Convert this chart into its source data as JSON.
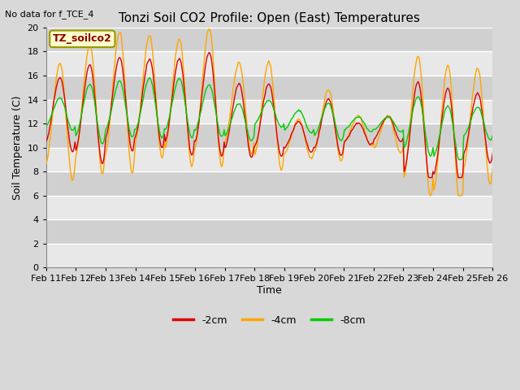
{
  "title": "Tonzi Soil CO2 Profile: Open (East) Temperatures",
  "subtitle": "No data for f_TCE_4",
  "ylabel": "Soil Temperature (C)",
  "xlabel": "Time",
  "legend_label": "TZ_soilco2",
  "series_labels": [
    "-2cm",
    "-4cm",
    "-8cm"
  ],
  "series_colors": [
    "#dd0000",
    "#ffa500",
    "#00cc00"
  ],
  "ylim": [
    0,
    20
  ],
  "yticks": [
    0,
    2,
    4,
    6,
    8,
    10,
    12,
    14,
    16,
    18,
    20
  ],
  "xtick_labels": [
    "Feb 11",
    "Feb 12",
    "Feb 13",
    "Feb 14",
    "Feb 15",
    "Feb 16",
    "Feb 17",
    "Feb 18",
    "Feb 19",
    "Feb 20",
    "Feb 21",
    "Feb 22",
    "Feb 23",
    "Feb 24",
    "Feb 25",
    "Feb 26"
  ],
  "bg_color": "#d8d8d8",
  "plot_bg_color": "#e0e0e0",
  "line_width": 1.0,
  "grid_color": "#ffffff",
  "n_points": 480,
  "band_colors": [
    "#e8e8e8",
    "#d4d4d4"
  ]
}
